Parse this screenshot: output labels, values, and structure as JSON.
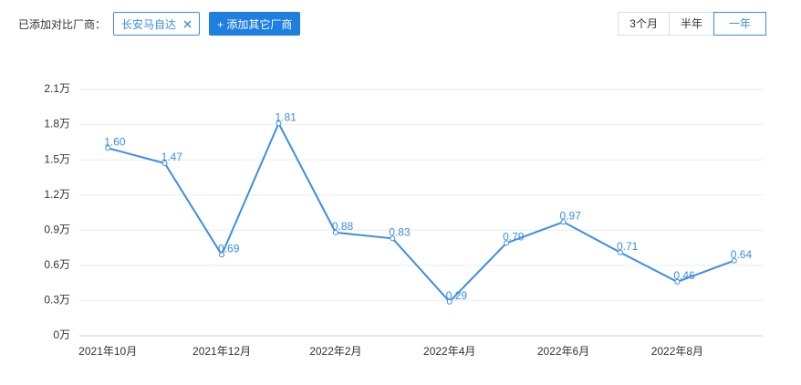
{
  "toolbar": {
    "label": "已添加对比厂商：",
    "tag": "长安马自达",
    "add_button": "+ 添加其它厂商",
    "ranges": [
      "3个月",
      "半年",
      "一年"
    ]
  },
  "chart_data": {
    "type": "line",
    "categories": [
      "2021年10月",
      null,
      "2021年12月",
      null,
      "2022年2月",
      null,
      "2022年4月",
      null,
      "2022年6月",
      null,
      "2022年8月",
      null
    ],
    "series": [
      {
        "color": "#3a8ee6",
        "values": [
          1.6,
          1.47,
          0.69,
          1.81,
          0.88,
          0.83,
          0.29,
          0.79,
          0.97,
          0.71,
          0.46,
          0.64
        ],
        "value_labels": [
          "1.60",
          "1.47",
          "0.69",
          "1.81",
          "0.88",
          "0.83",
          "0.29",
          "0.79",
          "0.97",
          "0.71",
          "0.46",
          "0.64"
        ]
      }
    ],
    "ylim": [
      0,
      2.1
    ],
    "yticks": [
      {
        "value": 0,
        "label": "0万"
      },
      {
        "value": 0.3,
        "label": "0.3万"
      },
      {
        "value": 0.6,
        "label": "0.6万"
      },
      {
        "value": 0.9,
        "label": "0.9万"
      },
      {
        "value": 1.2,
        "label": "1.2万"
      },
      {
        "value": 1.5,
        "label": "1.5万"
      },
      {
        "value": 1.8,
        "label": "1.8万"
      },
      {
        "value": 2.1,
        "label": "2.1万"
      }
    ],
    "grid": true
  }
}
